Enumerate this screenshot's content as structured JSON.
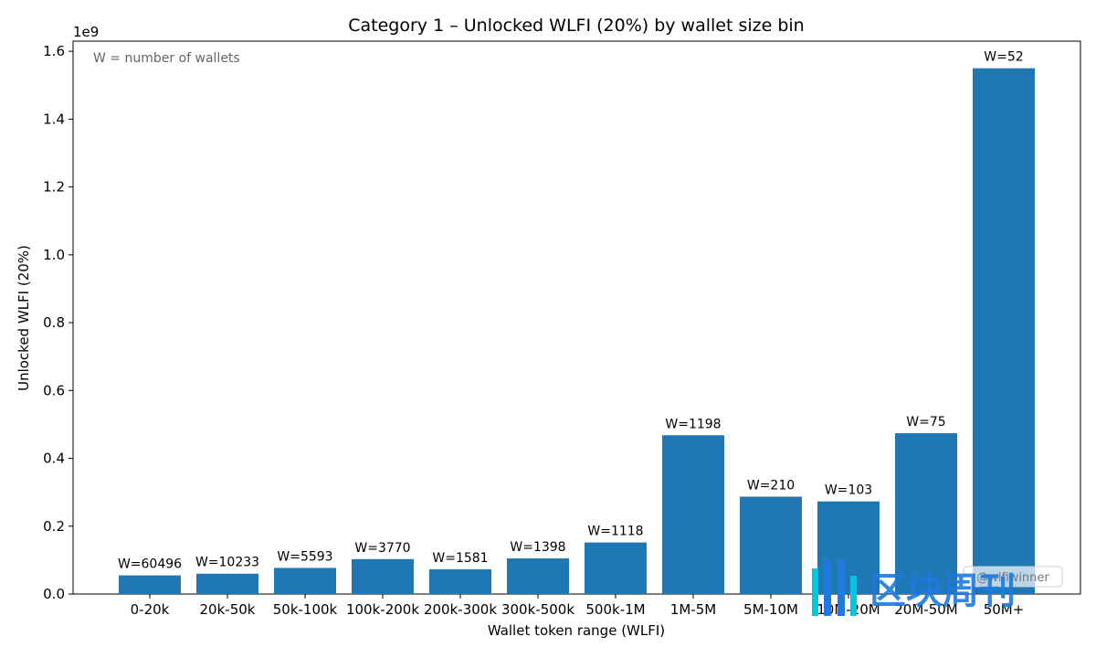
{
  "chart_data": {
    "type": "bar",
    "title": "Category 1 – Unlocked WLFI (20%) by wallet size bin",
    "xlabel": "Wallet token range (WLFI)",
    "ylabel": "Unlocked WLFI (20%)",
    "y_offset_label": "1e9",
    "annotation": "W = number of wallets",
    "ylim": [
      0,
      1.63
    ],
    "y_ticks": [
      "0.0",
      "0.2",
      "0.4",
      "0.6",
      "0.8",
      "1.0",
      "1.2",
      "1.4",
      "1.6"
    ],
    "grid": false,
    "bar_color": "#1f77b4",
    "categories": [
      "0-20k",
      "20k-50k",
      "50k-100k",
      "100k-200k",
      "200k-300k",
      "300k-500k",
      "500k-1M",
      "1M-5M",
      "5M-10M",
      "10M-20M",
      "20M-50M",
      "50M+"
    ],
    "values": [
      0.055,
      0.06,
      0.077,
      0.103,
      0.073,
      0.105,
      0.152,
      0.468,
      0.287,
      0.273,
      0.474,
      1.55
    ],
    "data_labels": [
      "W=60496",
      "W=10233",
      "W=5593",
      "W=3770",
      "W=1581",
      "W=1398",
      "W=1118",
      "W=1198",
      "W=210",
      "W=103",
      "W=75",
      "W=52"
    ]
  },
  "watermark": {
    "handle": "@wlfiwinner",
    "brand": "区块周刊"
  }
}
